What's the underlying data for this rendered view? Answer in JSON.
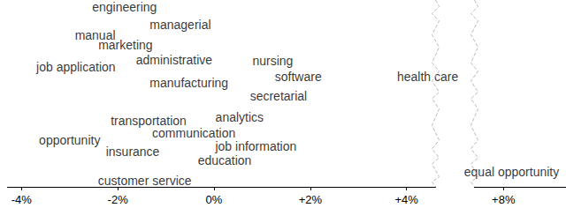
{
  "chart_data": {
    "type": "scatter",
    "labels": [
      "engineering",
      "managerial",
      "manual",
      "marketing",
      "job application",
      "administrative",
      "nursing",
      "software",
      "health care",
      "manufacturing",
      "secretarial",
      "transportation",
      "analytics",
      "communication",
      "opportunity",
      "insurance",
      "job information",
      "education",
      "equal opportunity",
      "customer service"
    ],
    "x": [
      -1.86,
      -0.7,
      -2.47,
      -1.84,
      -2.87,
      -0.83,
      1.22,
      1.75,
      4.44,
      -0.52,
      1.34,
      -1.36,
      0.53,
      -0.42,
      -3.0,
      -1.69,
      0.87,
      0.22,
      8.17,
      -1.44
    ],
    "y": [
      19.2,
      17.4,
      16.2,
      15.2,
      12.8,
      13.6,
      13.5,
      11.8,
      11.8,
      11.1,
      9.7,
      7.1,
      7.5,
      5.8,
      5.0,
      3.8,
      4.3,
      2.8,
      1.6,
      0.7
    ],
    "color": "#000000",
    "xlim": [
      -4.3,
      9.3
    ],
    "xticks": [
      {
        "value": -4,
        "label": "-4%"
      },
      {
        "value": -2,
        "label": "-2%"
      },
      {
        "value": 0,
        "label": "0%"
      },
      {
        "value": 2,
        "label": "+2%"
      },
      {
        "value": 4,
        "label": "+4%"
      },
      {
        "value": 8,
        "label": "+8%"
      }
    ],
    "xbreak": [
      4.6,
      7.4
    ],
    "ylim": [
      0,
      20
    ],
    "tick_labels": "x",
    "grid": false
  }
}
